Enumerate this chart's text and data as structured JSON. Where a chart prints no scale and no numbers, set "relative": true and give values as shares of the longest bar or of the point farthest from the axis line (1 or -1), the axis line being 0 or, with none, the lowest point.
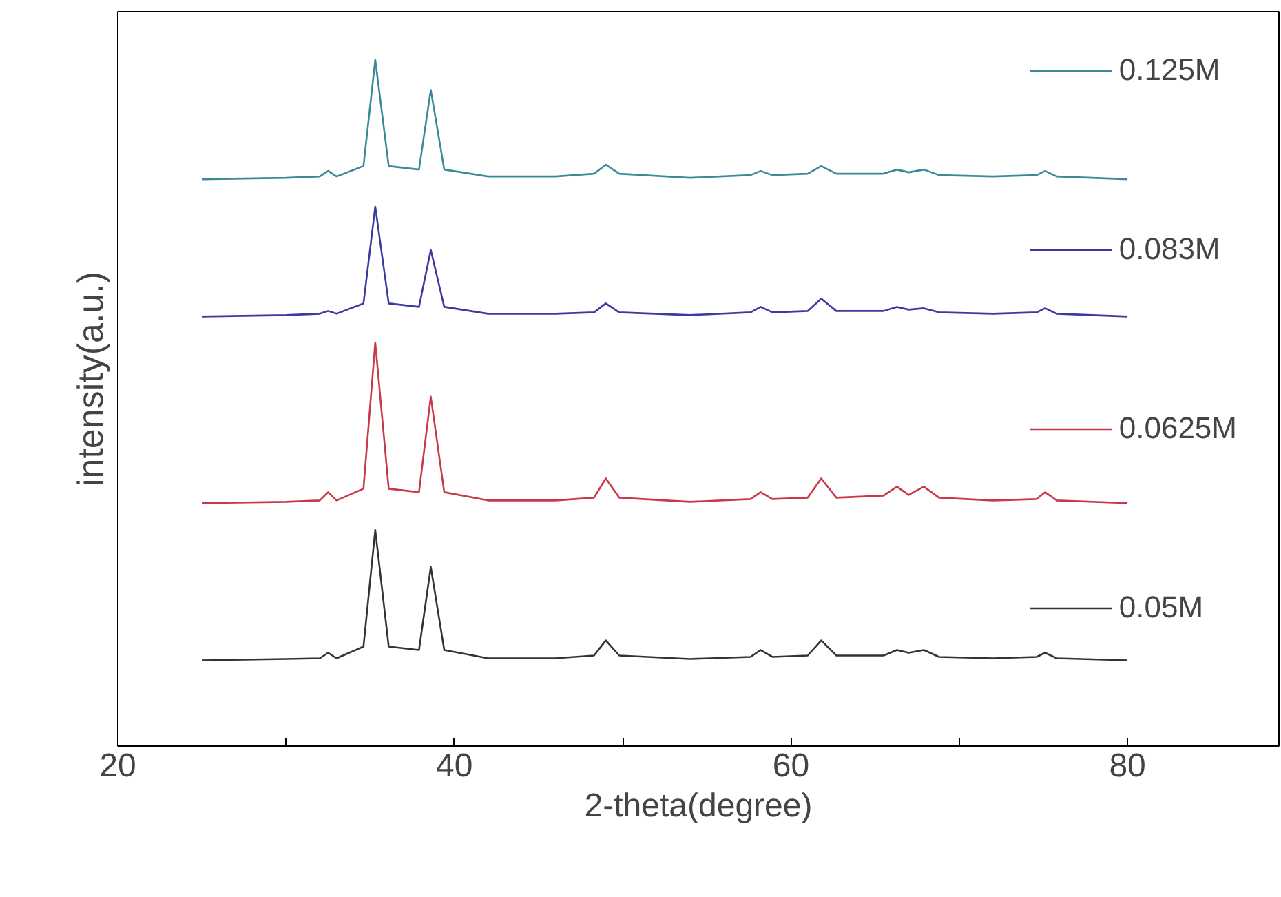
{
  "chart_data": {
    "type": "line",
    "xlabel": "2-theta(degree)",
    "ylabel": "intensity(a.u.)",
    "relative": true,
    "xlim": [
      20,
      89
    ],
    "xticks": [
      20,
      {
        "value": 30,
        "label": null
      },
      40,
      {
        "value": 50,
        "label": null
      },
      60,
      {
        "value": 70,
        "label": null
      },
      80
    ],
    "grid": false,
    "legend": "right",
    "marker": "none",
    "line_style": "solid",
    "x": [
      25,
      30,
      32,
      32.5,
      33,
      34.6,
      35.3,
      36.1,
      37.9,
      38.6,
      39.4,
      42,
      46,
      48.3,
      49,
      49.8,
      54,
      57.6,
      58.2,
      58.9,
      61,
      61.8,
      62.7,
      65.5,
      66.3,
      67,
      67.9,
      68.8,
      72,
      74.6,
      75.1,
      75.8,
      80
    ],
    "series": [
      {
        "name": "0.125M",
        "color": "#3a8a9a",
        "values": [
          0.826,
          0.828,
          0.83,
          0.838,
          0.83,
          0.845,
          1.0,
          0.845,
          0.84,
          0.956,
          0.84,
          0.83,
          0.83,
          0.834,
          0.847,
          0.834,
          0.828,
          0.832,
          0.838,
          0.832,
          0.834,
          0.845,
          0.834,
          0.834,
          0.84,
          0.836,
          0.84,
          0.832,
          0.83,
          0.832,
          0.838,
          0.83,
          0.826
        ]
      },
      {
        "name": "0.083M",
        "color": "#3a3aa0",
        "values": [
          0.626,
          0.628,
          0.63,
          0.634,
          0.63,
          0.645,
          0.786,
          0.645,
          0.64,
          0.723,
          0.64,
          0.63,
          0.63,
          0.632,
          0.645,
          0.632,
          0.628,
          0.632,
          0.64,
          0.632,
          0.634,
          0.652,
          0.634,
          0.634,
          0.64,
          0.636,
          0.638,
          0.632,
          0.63,
          0.632,
          0.638,
          0.63,
          0.626
        ]
      },
      {
        "name": "0.0625M",
        "color": "#c8384a",
        "values": [
          0.354,
          0.356,
          0.358,
          0.37,
          0.358,
          0.375,
          0.588,
          0.375,
          0.37,
          0.509,
          0.37,
          0.358,
          0.358,
          0.362,
          0.39,
          0.362,
          0.356,
          0.36,
          0.37,
          0.36,
          0.362,
          0.39,
          0.362,
          0.365,
          0.378,
          0.366,
          0.378,
          0.362,
          0.358,
          0.36,
          0.37,
          0.358,
          0.354
        ]
      },
      {
        "name": "0.05M",
        "color": "#333333",
        "values": [
          0.125,
          0.127,
          0.128,
          0.136,
          0.128,
          0.145,
          0.315,
          0.145,
          0.14,
          0.261,
          0.14,
          0.128,
          0.128,
          0.132,
          0.154,
          0.132,
          0.127,
          0.13,
          0.14,
          0.13,
          0.132,
          0.154,
          0.132,
          0.132,
          0.14,
          0.136,
          0.14,
          0.13,
          0.128,
          0.13,
          0.136,
          0.128,
          0.125
        ]
      }
    ]
  }
}
